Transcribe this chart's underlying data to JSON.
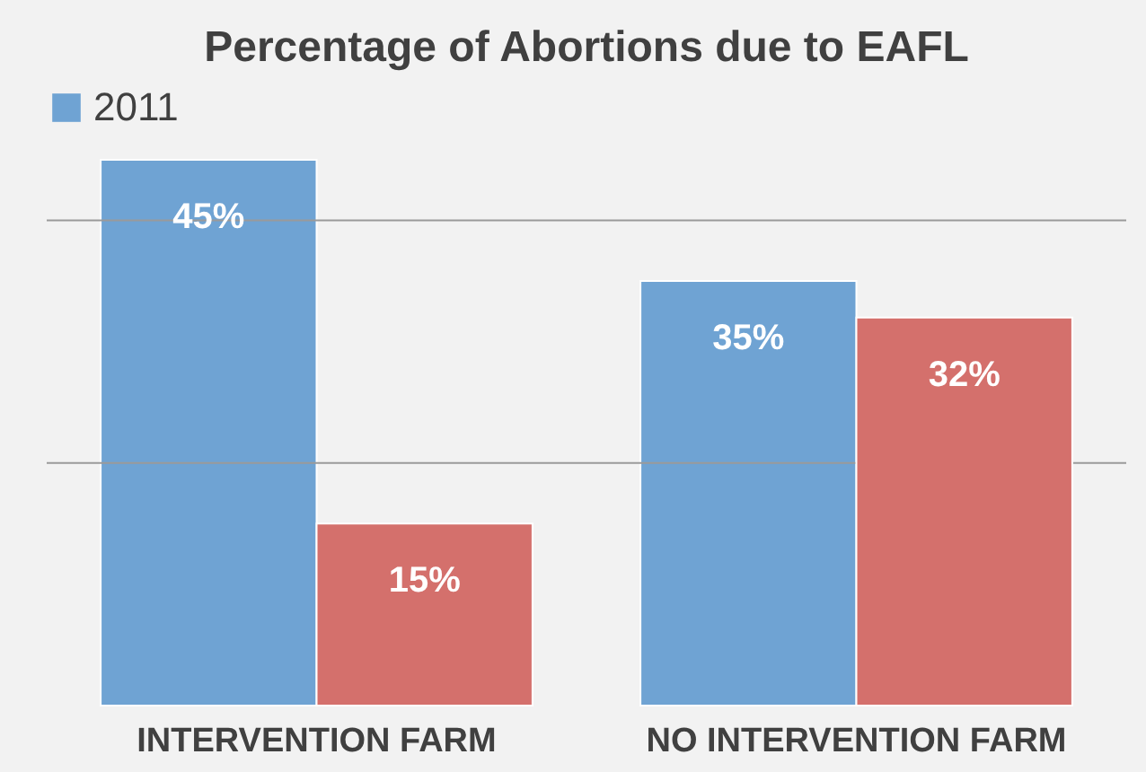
{
  "chart_data": {
    "type": "bar",
    "title": "Percentage of Abortions due to EAFL",
    "categories": [
      "INTERVENTION FARM",
      "NO INTERVENTION FARM"
    ],
    "series": [
      {
        "name": "2011",
        "color": "#6fa3d3",
        "values": [
          45,
          35
        ],
        "value_labels": [
          "45%",
          "35%"
        ]
      },
      {
        "color": "#d4706c",
        "values": [
          15,
          32
        ],
        "value_labels": [
          "15%",
          "32%"
        ]
      }
    ],
    "ref_lines": [
      {
        "axis": "y",
        "value": 20,
        "color": "#9a9a9a"
      },
      {
        "axis": "y",
        "value": 40,
        "color": "#9a9a9a"
      }
    ],
    "tick_labels": "x",
    "legend": "top"
  }
}
